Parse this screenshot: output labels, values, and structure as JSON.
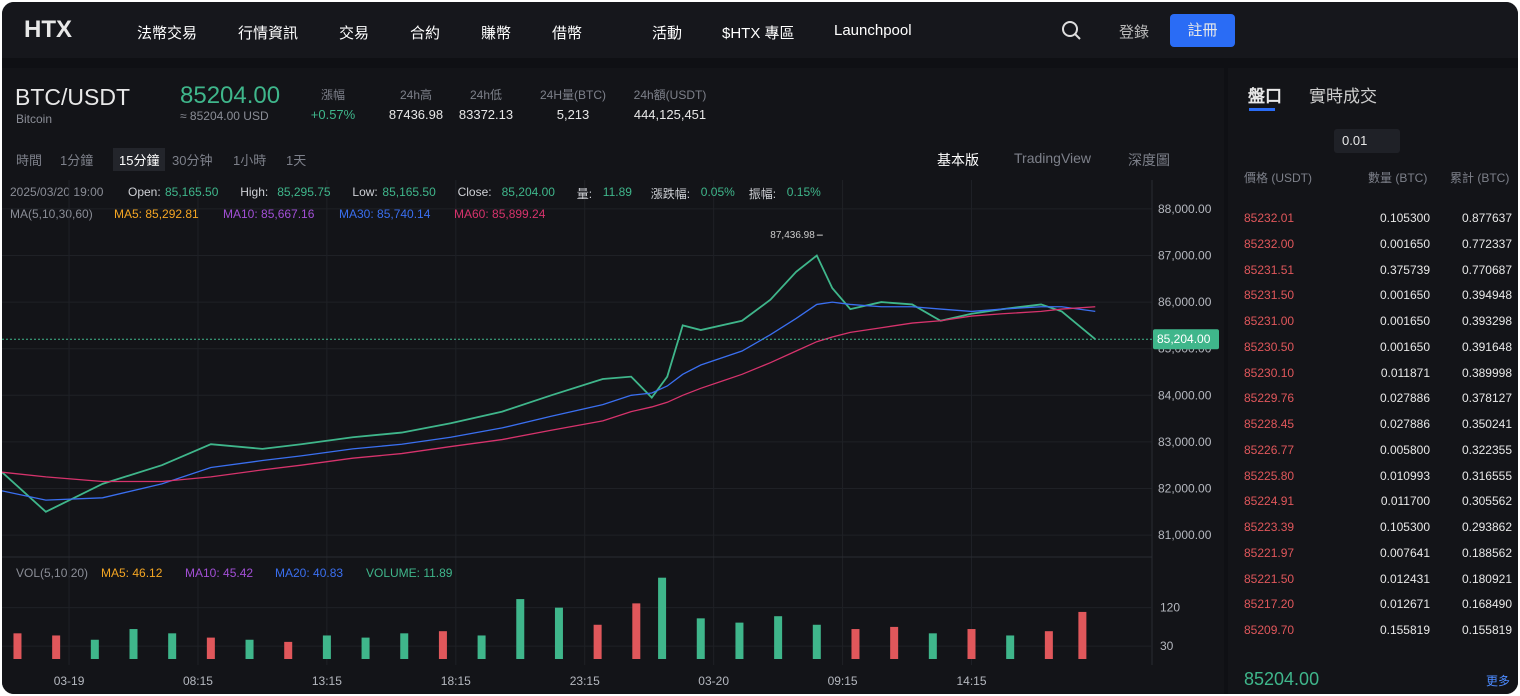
{
  "header": {
    "logo": "HTX",
    "nav": [
      "法幣交易",
      "行情資訊",
      "交易",
      "合約",
      "賺幣",
      "借幣",
      "活動",
      "$HTX 專區",
      "Launchpool"
    ],
    "login": "登錄",
    "register": "註冊"
  },
  "ticker": {
    "symbol": "BTC/USDT",
    "name": "Bitcoin",
    "price": "85204.00",
    "price_usd": "≈ 85204.00 USD",
    "stats": [
      {
        "label": "漲幅",
        "value": "+0.57%"
      },
      {
        "label": "24h高",
        "value": "87436.98"
      },
      {
        "label": "24h低",
        "value": "83372.13"
      },
      {
        "label": "24H量(BTC)",
        "value": "5,213"
      },
      {
        "label": "24h額(USDT)",
        "value": "444,125,451"
      }
    ]
  },
  "toolbar": {
    "intervals": [
      "時間",
      "1分鐘",
      "15分鐘",
      "30分钟",
      "1小時",
      "1天"
    ],
    "views": [
      "基本版",
      "TradingView",
      "深度圖"
    ]
  },
  "info": {
    "time": "2025/03/20 19:00",
    "fields": [
      {
        "label": "Open:",
        "value": "85,165.50"
      },
      {
        "label": "High:",
        "value": "85,295.75"
      },
      {
        "label": "Low:",
        "value": "85,165.50"
      },
      {
        "label": "Close:",
        "value": "85,204.00"
      },
      {
        "label": "量:",
        "value": "11.89"
      },
      {
        "label": "漲跌幅:",
        "value": "0.05%"
      },
      {
        "label": "振幅:",
        "value": "0.15%"
      }
    ],
    "ma_title": "MA(5,10,30,60)",
    "ma": [
      "MA5: 85,292.81",
      "MA10: 85,667.16",
      "MA30: 85,740.14",
      "MA60: 85,899.24"
    ],
    "vol_title": "VOL(5,10,20)",
    "vol": [
      "MA5: 46.12",
      "MA10: 45.42",
      "MA20: 40.83",
      "VOLUME: 11.89"
    ]
  },
  "chart_data": [
    {
      "type": "line",
      "xlim": [
        -2.6,
        42
      ],
      "ylim": [
        80530,
        88620
      ],
      "yticks": [
        {
          "value": 88000,
          "label": "88,000.00"
        },
        {
          "value": 87000,
          "label": "87,000.00"
        },
        {
          "value": 86000,
          "label": "86,000.00"
        },
        {
          "value": 85000,
          "label": "85,000.00"
        },
        {
          "value": 84000,
          "label": "84,000.00"
        },
        {
          "value": 83000,
          "label": "83,000.00"
        },
        {
          "value": 82000,
          "label": "82,000.00"
        },
        {
          "value": 81000,
          "label": "81,000.00"
        }
      ],
      "xticks": [
        {
          "value": 0,
          "label": "03-19"
        },
        {
          "value": 5,
          "label": "08:15"
        },
        {
          "value": 10,
          "label": "13:15"
        },
        {
          "value": 15,
          "label": "18:15"
        },
        {
          "value": 20,
          "label": "23:15"
        },
        {
          "value": 25,
          "label": "03-20"
        },
        {
          "value": 30,
          "label": "09:15"
        },
        {
          "value": 35,
          "label": "14:15"
        }
      ],
      "x": [
        -2.6,
        -0.9,
        1.3,
        3.6,
        5.5,
        7.5,
        9.0,
        11.0,
        12.9,
        14.8,
        16.8,
        18.7,
        20.7,
        21.8,
        22.6,
        23.2,
        23.8,
        24.5,
        26.1,
        27.2,
        28.2,
        29.0,
        29.6,
        30.3,
        31.5,
        32.7,
        33.8,
        35.0,
        36.2,
        37.7,
        38.5,
        39.8
      ],
      "series": [
        {
          "color": "#3fb68b",
          "values": [
            82350,
            81500,
            82100,
            82500,
            82950,
            82850,
            82950,
            83100,
            83200,
            83400,
            83650,
            84000,
            84350,
            84400,
            83950,
            84400,
            85500,
            85400,
            85600,
            86050,
            86650,
            87000,
            86300,
            85850,
            86000,
            85950,
            85600,
            85750,
            85850,
            85950,
            85800,
            85204
          ]
        },
        {
          "name": "MA30: 85,740.14",
          "color": "#3a6ff0",
          "values": [
            81950,
            81750,
            81800,
            82100,
            82450,
            82600,
            82700,
            82850,
            82950,
            83100,
            83300,
            83550,
            83800,
            84000,
            84050,
            84200,
            84450,
            84650,
            84950,
            85300,
            85650,
            85950,
            86000,
            85950,
            85900,
            85900,
            85850,
            85800,
            85850,
            85900,
            85900,
            85800
          ]
        },
        {
          "name": "MA60: 85,899.24",
          "color": "#d6336c",
          "values": [
            82350,
            82250,
            82150,
            82150,
            82250,
            82400,
            82500,
            82650,
            82750,
            82900,
            83050,
            83250,
            83450,
            83650,
            83750,
            83850,
            84000,
            84150,
            84450,
            84700,
            84950,
            85150,
            85250,
            85350,
            85450,
            85550,
            85600,
            85700,
            85750,
            85800,
            85850,
            85900
          ]
        }
      ],
      "last_label": "85,204.00",
      "last_value": 85204,
      "high_label": "87,436.98",
      "high_value": 87436.98,
      "high_x": 29.0
    },
    {
      "type": "bar",
      "xlim": [
        -2.6,
        42
      ],
      "ylim": [
        0,
        222
      ],
      "yticks": [
        120,
        30
      ],
      "x": [
        -2,
        -0.5,
        1,
        2.5,
        4,
        5.5,
        7,
        8.5,
        10,
        11.5,
        13,
        14.5,
        16,
        17.5,
        19,
        20.5,
        22,
        23,
        24.5,
        26,
        27.5,
        29,
        30.5,
        32,
        33.5,
        35,
        36.5,
        38,
        39.3
      ],
      "values": [
        60,
        55,
        45,
        70,
        60,
        50,
        45,
        40,
        55,
        50,
        60,
        65,
        55,
        140,
        120,
        80,
        130,
        190,
        95,
        85,
        100,
        80,
        70,
        75,
        60,
        70,
        55,
        65,
        110
      ],
      "colors": [
        "#e0575b",
        "#e0575b",
        "#3fb68b",
        "#3fb68b",
        "#3fb68b",
        "#e0575b",
        "#3fb68b",
        "#e0575b",
        "#3fb68b",
        "#3fb68b",
        "#3fb68b",
        "#e0575b",
        "#3fb68b",
        "#3fb68b",
        "#3fb68b",
        "#e0575b",
        "#e0575b",
        "#3fb68b",
        "#3fb68b",
        "#3fb68b",
        "#3fb68b",
        "#3fb68b",
        "#e0575b",
        "#e0575b",
        "#3fb68b",
        "#e0575b",
        "#3fb68b",
        "#e0575b",
        "#e0575b"
      ]
    }
  ],
  "orderbook": {
    "tabs": [
      "盤口",
      "實時成交"
    ],
    "precision": "0.01",
    "headers": [
      "價格 (USDT)",
      "數量 (BTC)",
      "累計 (BTC)"
    ],
    "rows": [
      [
        "85232.01",
        "0.105300",
        "0.877637"
      ],
      [
        "85232.00",
        "0.001650",
        "0.772337"
      ],
      [
        "85231.51",
        "0.375739",
        "0.770687"
      ],
      [
        "85231.50",
        "0.001650",
        "0.394948"
      ],
      [
        "85231.00",
        "0.001650",
        "0.393298"
      ],
      [
        "85230.50",
        "0.001650",
        "0.391648"
      ],
      [
        "85230.10",
        "0.011871",
        "0.389998"
      ],
      [
        "85229.76",
        "0.027886",
        "0.378127"
      ],
      [
        "85228.45",
        "0.027886",
        "0.350241"
      ],
      [
        "85226.77",
        "0.005800",
        "0.322355"
      ],
      [
        "85225.80",
        "0.010993",
        "0.316555"
      ],
      [
        "85224.91",
        "0.011700",
        "0.305562"
      ],
      [
        "85223.39",
        "0.105300",
        "0.293862"
      ],
      [
        "85221.97",
        "0.007641",
        "0.188562"
      ],
      [
        "85221.50",
        "0.012431",
        "0.180921"
      ],
      [
        "85217.20",
        "0.012671",
        "0.168490"
      ],
      [
        "85209.70",
        "0.155819",
        "0.155819"
      ]
    ],
    "last": "85204.00",
    "more": "更多"
  }
}
